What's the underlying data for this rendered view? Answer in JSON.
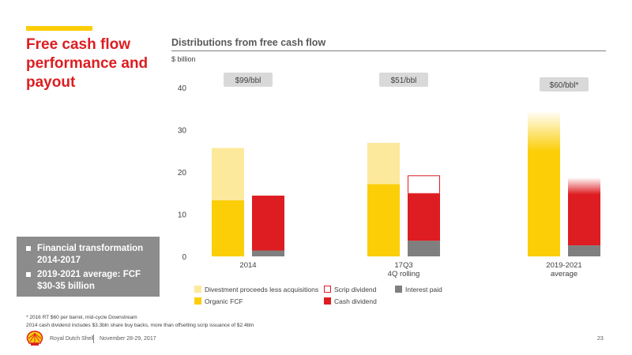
{
  "slide": {
    "title_lines": [
      "Free cash flow",
      "performance and",
      "payout"
    ],
    "callout": [
      "Financial transformation 2014-2017",
      "2019-2021 average: FCF $30-35 billion"
    ],
    "chart_title": "Distributions from free cash flow",
    "unit": "$ billion",
    "footnote_lines": [
      "* 2016 RT $60 per barrel, mid-cycle Downstream",
      "2014 cash dividend includes $3.3bln share buy backs, more than offsetting scrip issuance of $2.4bln"
    ],
    "footer": {
      "company": "Royal Dutch Shell",
      "date": "November 28-29, 2017",
      "page": "23"
    }
  },
  "colors": {
    "organic_fcf": "#fbce07",
    "divestment": "#fde99b",
    "cash_dividend": "#dd1d21",
    "scrip_border": "#dd1d21",
    "interest": "#7f7f7f",
    "price_box": "#d9d9d9",
    "title": "#dd1d21",
    "accent": "#fbce07"
  },
  "chart_data": {
    "type": "bar",
    "ylim": [
      0,
      40
    ],
    "yticks": [
      0,
      10,
      20,
      30,
      40
    ],
    "groups": [
      {
        "label": [
          "2014"
        ],
        "price": "$99/bbl",
        "sources": {
          "organic_fcf": 13.3,
          "divestment": 12.4
        },
        "distributions": {
          "interest": 1.4,
          "cash_dividend": 13.0,
          "scrip_dividend": 0
        }
      },
      {
        "label": [
          "17Q3",
          "4Q rolling"
        ],
        "price": "$51/bbl",
        "sources": {
          "organic_fcf": 17.1,
          "divestment": 9.8
        },
        "distributions": {
          "interest": 3.7,
          "cash_dividend": 11.1,
          "scrip_dividend": 4.4
        }
      },
      {
        "label": [
          "2019-2021",
          "average"
        ],
        "price": "$60/bbl*",
        "sources": {
          "organic_fcf": 34.5,
          "divestment": 0
        },
        "distributions": {
          "interest": 2.6,
          "cash_dividend": 16.1,
          "scrip_dividend": 0
        }
      }
    ],
    "legend": [
      {
        "key": "divestment",
        "label": "Divestment proceeds less acquisitions"
      },
      {
        "key": "organic_fcf",
        "label": "Organic FCF"
      },
      {
        "key": "scrip_dividend",
        "label": "Scrip dividend"
      },
      {
        "key": "cash_dividend",
        "label": "Cash dividend"
      },
      {
        "key": "interest",
        "label": "Interest paid"
      }
    ]
  }
}
